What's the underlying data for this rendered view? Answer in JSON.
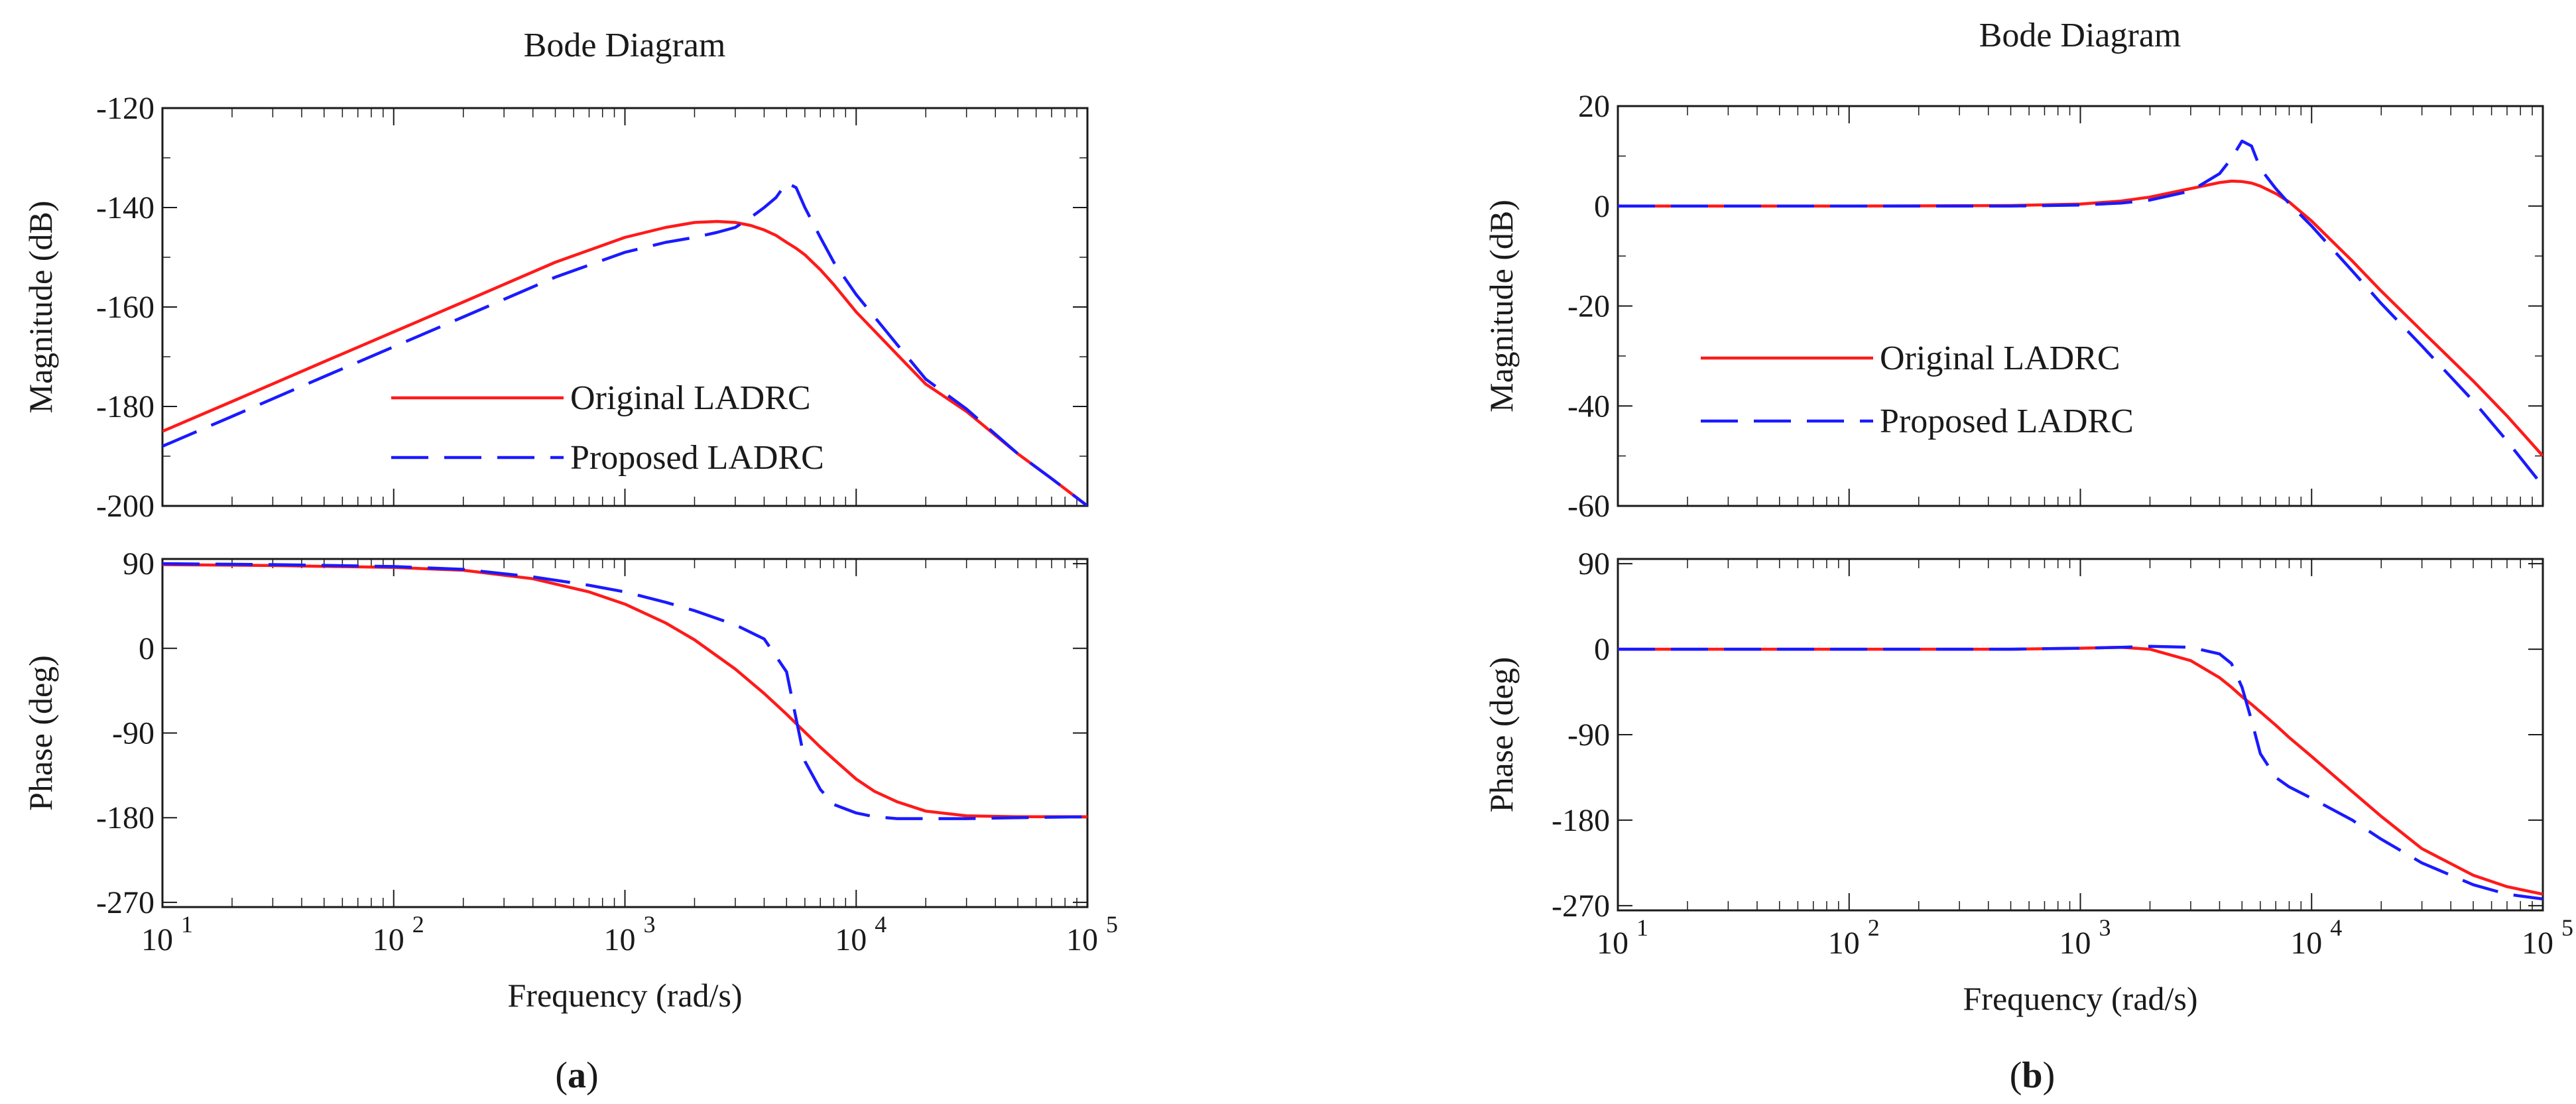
{
  "chart_data": [
    {
      "panel_label": "a",
      "title": "Bode Diagram",
      "type": "line",
      "x_scale": "log",
      "xlabel": "Frequency  (rad/s)",
      "xlim": [
        10,
        100000
      ],
      "x_ticks": [
        {
          "value": 10,
          "base": "10",
          "exp": "1"
        },
        {
          "value": 100,
          "base": "10",
          "exp": "2"
        },
        {
          "value": 1000,
          "base": "10",
          "exp": "3"
        },
        {
          "value": 10000,
          "base": "10",
          "exp": "4"
        },
        {
          "value": 100000,
          "base": "10",
          "exp": "5"
        }
      ],
      "legend": {
        "placement": "center-left",
        "entries": [
          "Original LADRC",
          "Proposed LADRC"
        ]
      },
      "subplots": [
        {
          "name": "magnitude",
          "ylabel": "Magnitude (dB)",
          "ylim": [
            -200,
            -120
          ],
          "y_ticks": [
            -200,
            -180,
            -160,
            -140,
            -120
          ],
          "x": [
            10,
            20,
            50,
            100,
            200,
            500,
            1000,
            1500,
            2000,
            2500,
            3000,
            3500,
            4000,
            4500,
            5000,
            5500,
            6000,
            7000,
            8000,
            10000,
            15000,
            20000,
            30000,
            50000,
            70000,
            100000
          ],
          "series": [
            {
              "name": "Original LADRC",
              "color": "#ff1a1a",
              "dash": "solid",
              "values": [
                -185,
                -179,
                -171,
                -165,
                -159,
                -151,
                -146,
                -144,
                -143,
                -142.8,
                -143,
                -143.6,
                -144.5,
                -145.6,
                -147,
                -148.2,
                -149.5,
                -152.5,
                -155.5,
                -161,
                -169.5,
                -175.5,
                -181,
                -189.5,
                -194.5,
                -200
              ]
            },
            {
              "name": "Proposed LADRC",
              "color": "#1a1aff",
              "dash": "long",
              "values": [
                -188,
                -182,
                -174,
                -168,
                -162,
                -154,
                -149,
                -147,
                -146,
                -145,
                -144,
                -142,
                -140,
                -138,
                -135,
                -136,
                -140,
                -146,
                -151,
                -157.5,
                -167.5,
                -174.5,
                -180.5,
                -189.5,
                -194.5,
                -200
              ]
            }
          ]
        },
        {
          "name": "phase",
          "ylabel": "Phase (deg)",
          "ylim": [
            -275,
            95
          ],
          "y_ticks": [
            -270,
            -180,
            -90,
            0,
            90
          ],
          "x": [
            10,
            30,
            100,
            200,
            400,
            700,
            1000,
            1500,
            2000,
            3000,
            4000,
            5000,
            5500,
            6000,
            7000,
            8000,
            10000,
            12000,
            15000,
            20000,
            30000,
            50000,
            100000
          ],
          "series": [
            {
              "name": "Original LADRC",
              "color": "#ff1a1a",
              "dash": "solid",
              "values": [
                89,
                88,
                86,
                83,
                74,
                60,
                47,
                27,
                9,
                -22,
                -48,
                -70,
                -80,
                -89,
                -105,
                -118,
                -139,
                -152,
                -163,
                -173,
                -178,
                -179,
                -179
              ]
            },
            {
              "name": "Proposed LADRC",
              "color": "#1a1aff",
              "dash": "long",
              "values": [
                90,
                89,
                87,
                84,
                76,
                67,
                60,
                49,
                40,
                25,
                10,
                -25,
                -75,
                -120,
                -150,
                -166,
                -175,
                -179,
                -181,
                -181,
                -181,
                -180,
                -179
              ]
            }
          ]
        }
      ]
    },
    {
      "panel_label": "b",
      "title": "Bode Diagram",
      "type": "line",
      "x_scale": "log",
      "xlabel": "Frequency  (rad/s)",
      "xlim": [
        10,
        100000
      ],
      "x_ticks": [
        {
          "value": 10,
          "base": "10",
          "exp": "1"
        },
        {
          "value": 100,
          "base": "10",
          "exp": "2"
        },
        {
          "value": 1000,
          "base": "10",
          "exp": "3"
        },
        {
          "value": 10000,
          "base": "10",
          "exp": "4"
        },
        {
          "value": 100000,
          "base": "10",
          "exp": "5"
        }
      ],
      "legend": {
        "placement": "center-left",
        "entries": [
          "Original LADRC",
          "Proposed LADRC"
        ]
      },
      "subplots": [
        {
          "name": "magnitude",
          "ylabel": "Magnitude (dB)",
          "ylim": [
            -60,
            20
          ],
          "y_ticks": [
            -60,
            -40,
            -20,
            0,
            20
          ],
          "x": [
            10,
            100,
            500,
            1000,
            1500,
            2000,
            3000,
            4000,
            4500,
            5000,
            5500,
            6000,
            7000,
            8000,
            10000,
            15000,
            20000,
            30000,
            50000,
            70000,
            100000
          ],
          "series": [
            {
              "name": "Original LADRC",
              "color": "#ff1a1a",
              "dash": "solid",
              "values": [
                0,
                0,
                0.1,
                0.4,
                1,
                1.8,
                3.5,
                4.7,
                5,
                4.9,
                4.6,
                4,
                2.5,
                0.8,
                -3,
                -11,
                -17,
                -25,
                -35,
                -42,
                -50
              ]
            },
            {
              "name": "Proposed LADRC",
              "color": "#1a1aff",
              "dash": "long",
              "values": [
                0,
                0,
                0,
                0.2,
                0.6,
                1.2,
                3,
                6.5,
                9.5,
                13,
                12,
                7.5,
                3.5,
                0.5,
                -4,
                -13,
                -19.5,
                -28,
                -39,
                -47,
                -56
              ]
            }
          ]
        },
        {
          "name": "phase",
          "ylabel": "Phase (deg)",
          "ylim": [
            -275,
            95
          ],
          "y_ticks": [
            -270,
            -180,
            -90,
            0,
            90
          ],
          "x": [
            10,
            100,
            500,
            1000,
            1500,
            2000,
            3000,
            4000,
            4500,
            5000,
            5500,
            6000,
            7000,
            8000,
            10000,
            15000,
            20000,
            30000,
            50000,
            70000,
            100000
          ],
          "series": [
            {
              "name": "Original LADRC",
              "color": "#ff1a1a",
              "dash": "solid",
              "values": [
                0,
                0,
                0,
                1,
                2,
                0,
                -12,
                -30,
                -40,
                -50,
                -58,
                -66,
                -80,
                -93,
                -113,
                -150,
                -176,
                -210,
                -238,
                -250,
                -258
              ]
            },
            {
              "name": "Proposed LADRC",
              "color": "#1a1aff",
              "dash": "long",
              "values": [
                0,
                0,
                0,
                1,
                2,
                3,
                2,
                -5,
                -15,
                -40,
                -75,
                -110,
                -135,
                -145,
                -157,
                -180,
                -200,
                -225,
                -248,
                -258,
                -263
              ]
            }
          ]
        }
      ]
    }
  ]
}
